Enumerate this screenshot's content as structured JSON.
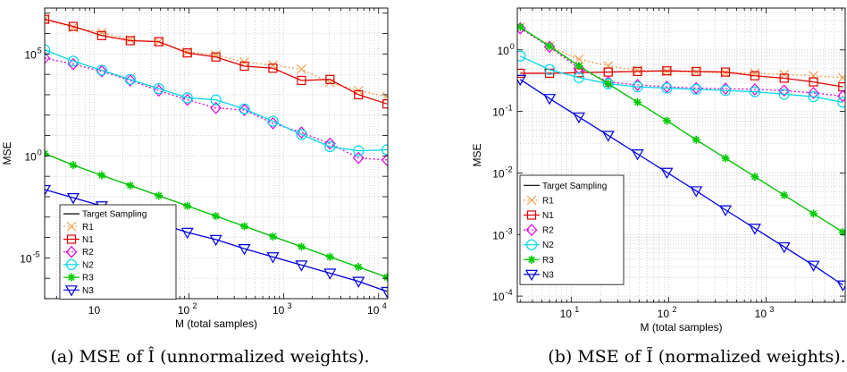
{
  "chart_data": [
    {
      "type": "line",
      "caption": "(a) MSE of Î (unnormalized weights).",
      "xlabel": "M (total samples)",
      "ylabel": "MSE",
      "xscale": "log",
      "yscale": "log",
      "xlim": [
        3,
        12500
      ],
      "ylim_exp": [
        -7,
        7.25
      ],
      "grid": true,
      "x_ticks": [
        {
          "exp": 1,
          "label": "10"
        },
        {
          "exp": 2,
          "label": "2"
        },
        {
          "exp": 3,
          "label": "3"
        },
        {
          "exp": 4,
          "label": "4"
        }
      ],
      "y_ticks": [
        {
          "exp": -5,
          "label": "-5"
        },
        {
          "exp": 0,
          "label": "0"
        },
        {
          "exp": 5,
          "label": "5"
        }
      ],
      "legend": "lower-left",
      "x": [
        3,
        6,
        12,
        24,
        48,
        96,
        192,
        384,
        768,
        1536,
        3072,
        6144,
        12288
      ],
      "series": [
        {
          "name": "Target Sampling",
          "color": "#000000",
          "marker": "none",
          "dash": "solid",
          "y_log10": [
            0.12,
            -0.45,
            -0.95,
            -1.45,
            -1.95,
            -2.45,
            -2.95,
            -3.45,
            -3.95,
            -4.45,
            -4.95,
            -5.45,
            -5.95
          ]
        },
        {
          "name": "R1",
          "color": "#f0a050",
          "marker": "x",
          "dash": "dotted",
          "y_log10": [
            6.7,
            6.3,
            6.05,
            5.7,
            5.6,
            5.1,
            4.95,
            4.6,
            4.45,
            4.25,
            3.6,
            3.2,
            2.9
          ]
        },
        {
          "name": "N1",
          "color": "#e00000",
          "marker": "square",
          "dash": "solid",
          "y_log10": [
            6.7,
            6.35,
            5.9,
            5.65,
            5.6,
            5.05,
            4.85,
            4.4,
            4.3,
            3.7,
            3.75,
            3.0,
            2.55
          ]
        },
        {
          "name": "R2",
          "color": "#e000e0",
          "marker": "diamond",
          "dash": "dotted",
          "y_log10": [
            4.8,
            4.5,
            4.15,
            3.7,
            3.2,
            2.75,
            2.35,
            2.25,
            1.6,
            1.15,
            0.6,
            -0.1,
            -0.2
          ]
        },
        {
          "name": "N2",
          "color": "#00d8e8",
          "marker": "circle",
          "dash": "solid",
          "y_log10": [
            5.2,
            4.65,
            4.2,
            3.75,
            3.3,
            2.85,
            2.75,
            2.3,
            1.7,
            1.05,
            0.45,
            0.25,
            0.3
          ]
        },
        {
          "name": "R3",
          "color": "#00cc00",
          "marker": "star",
          "dash": "solid",
          "y_log10": [
            0.12,
            -0.45,
            -0.95,
            -1.45,
            -1.95,
            -2.45,
            -2.95,
            -3.45,
            -3.95,
            -4.45,
            -4.95,
            -5.45,
            -5.95
          ]
        },
        {
          "name": "N3",
          "color": "#0000e0",
          "marker": "triangle-down",
          "dash": "solid",
          "y_log10": [
            -1.65,
            -2.05,
            -2.45,
            -2.9,
            -3.3,
            -3.75,
            -4.1,
            -4.55,
            -4.95,
            -5.35,
            -5.75,
            -6.15,
            -6.65
          ]
        }
      ]
    },
    {
      "type": "line",
      "caption": "(b) MSE of Ĩ (normalized weights).",
      "xlabel": "M (total samples)",
      "ylabel": "MSE",
      "xscale": "log",
      "yscale": "log",
      "xlim": [
        2.8,
        6500
      ],
      "ylim_exp": [
        -4.1,
        0.68
      ],
      "grid": true,
      "x_ticks": [
        {
          "exp": 1,
          "label": "1"
        },
        {
          "exp": 2,
          "label": "2"
        },
        {
          "exp": 3,
          "label": "3"
        }
      ],
      "y_ticks": [
        {
          "exp": -4,
          "label": "-4"
        },
        {
          "exp": -3,
          "label": "-3"
        },
        {
          "exp": -2,
          "label": "-2"
        },
        {
          "exp": -1,
          "label": "-1"
        },
        {
          "exp": 0,
          "label": "0"
        }
      ],
      "legend": "lower-left",
      "x": [
        3,
        6,
        12,
        24,
        48,
        96,
        192,
        384,
        768,
        1536,
        3072,
        6144
      ],
      "series": [
        {
          "name": "Target Sampling",
          "color": "#000000",
          "marker": "none",
          "dash": "solid",
          "y_log10": [
            0.37,
            0.06,
            -0.26,
            -0.55,
            -0.85,
            -1.15,
            -1.46,
            -1.76,
            -2.06,
            -2.36,
            -2.66,
            -2.96
          ]
        },
        {
          "name": "R1",
          "color": "#f0a050",
          "marker": "x",
          "dash": "dotted",
          "y_log10": [
            0.37,
            0.06,
            -0.15,
            -0.26,
            -0.33,
            -0.35,
            -0.36,
            -0.37,
            -0.38,
            -0.4,
            -0.42,
            -0.45
          ]
        },
        {
          "name": "N1",
          "color": "#e00000",
          "marker": "square",
          "dash": "solid",
          "y_log10": [
            -0.38,
            -0.38,
            -0.37,
            -0.36,
            -0.35,
            -0.34,
            -0.35,
            -0.36,
            -0.42,
            -0.46,
            -0.52,
            -0.6
          ]
        },
        {
          "name": "R2",
          "color": "#e000e0",
          "marker": "diamond",
          "dash": "dotted",
          "y_log10": [
            0.35,
            0.05,
            -0.3,
            -0.52,
            -0.57,
            -0.6,
            -0.62,
            -0.63,
            -0.64,
            -0.66,
            -0.7,
            -0.75
          ]
        },
        {
          "name": "N2",
          "color": "#00d8e8",
          "marker": "circle",
          "dash": "solid",
          "y_log10": [
            -0.1,
            -0.32,
            -0.45,
            -0.55,
            -0.6,
            -0.62,
            -0.64,
            -0.66,
            -0.68,
            -0.72,
            -0.76,
            -0.85
          ]
        },
        {
          "name": "R3",
          "color": "#00cc00",
          "marker": "star",
          "dash": "solid",
          "y_log10": [
            0.37,
            0.06,
            -0.26,
            -0.55,
            -0.85,
            -1.15,
            -1.46,
            -1.76,
            -2.06,
            -2.36,
            -2.66,
            -2.96
          ]
        },
        {
          "name": "N3",
          "color": "#0000e0",
          "marker": "triangle-down",
          "dash": "solid",
          "y_log10": [
            -0.48,
            -0.79,
            -1.09,
            -1.39,
            -1.69,
            -1.99,
            -2.29,
            -2.6,
            -2.9,
            -3.2,
            -3.5,
            -3.82
          ]
        }
      ]
    }
  ]
}
